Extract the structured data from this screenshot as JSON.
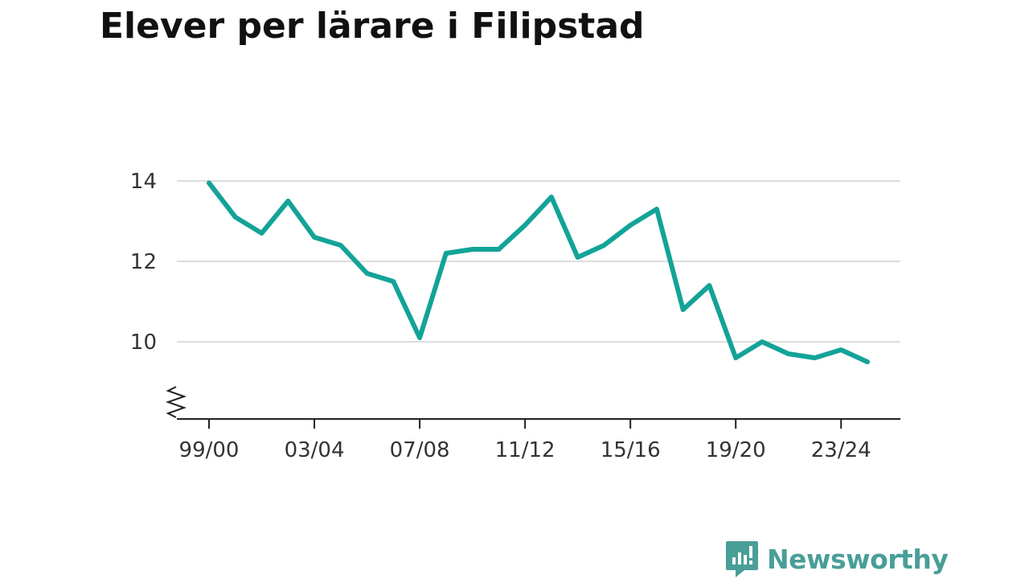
{
  "chart_data": {
    "type": "line",
    "title": "Elever per lärare i Filipstad",
    "xlabel": "",
    "ylabel": "",
    "x": [
      "99/00",
      "00/01",
      "01/02",
      "02/03",
      "03/04",
      "04/05",
      "05/06",
      "06/07",
      "07/08",
      "08/09",
      "09/10",
      "10/11",
      "11/12",
      "12/13",
      "13/14",
      "14/15",
      "15/16",
      "16/17",
      "17/18",
      "18/19",
      "19/20",
      "20/21",
      "21/22",
      "22/23",
      "23/24",
      "24/25"
    ],
    "series": [
      {
        "values": [
          13.95,
          13.1,
          12.7,
          13.5,
          12.6,
          12.4,
          11.7,
          11.5,
          10.1,
          12.2,
          12.3,
          12.3,
          12.9,
          13.6,
          12.1,
          12.4,
          12.9,
          13.3,
          10.8,
          11.4,
          9.6,
          10.0,
          9.7,
          9.6,
          9.8,
          9.5
        ]
      }
    ],
    "x_tick_labels": [
      "99/00",
      "03/04",
      "07/08",
      "11/12",
      "15/16",
      "19/20",
      "23/24"
    ],
    "y_ticks": [
      10,
      12,
      14
    ],
    "ylim": [
      8.1,
      14.5
    ],
    "axis_break": true,
    "grid": true,
    "line_color": "#13a398",
    "grid_color": "#dddddd"
  },
  "brand": {
    "name": "Newsworthy",
    "icon": "newsworthy-logo-icon",
    "color": "#4a9e98"
  }
}
